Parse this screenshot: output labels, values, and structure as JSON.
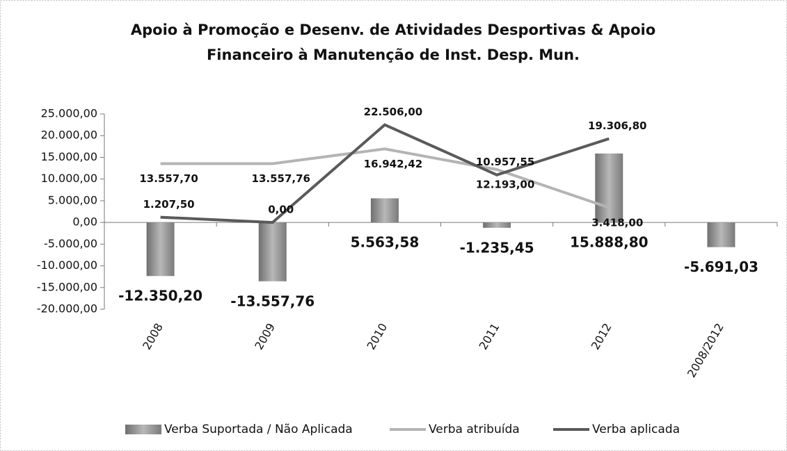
{
  "chart_data": {
    "type": "bar_line",
    "title": "Apoio à Promoção e Desenv. de Atividades Desportivas & Apoio Financeiro à Manutenção de Inst. Desp. Mun.",
    "categories": [
      "2008",
      "2009",
      "2010",
      "2011",
      "2012",
      "2008/2012"
    ],
    "series": [
      {
        "name": "Verba Suportada / Não Aplicada",
        "type": "bar",
        "color": "#8e8e8e",
        "values": [
          -12350.2,
          -13557.76,
          5563.58,
          -1235.45,
          15888.8,
          -5691.03
        ],
        "value_labels": [
          "-12.350,20",
          "-13.557,76",
          "5.563,58",
          "-1.235,45",
          "15.888,80",
          "-5.691,03"
        ]
      },
      {
        "name": "Verba atribuída",
        "type": "line",
        "color": "#b4b4b4",
        "values": [
          13557.7,
          13557.76,
          16942.42,
          12193.0,
          3418.0,
          null
        ],
        "value_labels": [
          "13.557,70",
          "13.557,76",
          "16.942,42",
          "12.193,00",
          "3.418,00",
          null
        ]
      },
      {
        "name": "Verba aplicada",
        "type": "line",
        "color": "#5a5a5a",
        "values": [
          1207.5,
          0.0,
          22506.0,
          10957.55,
          19306.8,
          null
        ],
        "value_labels": [
          "1.207,50",
          "0,00",
          "22.506,00",
          "10.957,55",
          "19.306,80",
          null
        ]
      }
    ],
    "ylim": [
      -20000,
      25000
    ],
    "yticks": [
      {
        "value": -20000,
        "label": "-20.000,00"
      },
      {
        "value": -15000,
        "label": "-15.000,00"
      },
      {
        "value": -10000,
        "label": "-10.000,00"
      },
      {
        "value": -5000,
        "label": "-5.000,00"
      },
      {
        "value": 0,
        "label": "0,00"
      },
      {
        "value": 5000,
        "label": "5.000,00"
      },
      {
        "value": 10000,
        "label": "10.000,00"
      },
      {
        "value": 15000,
        "label": "15.000,00"
      },
      {
        "value": 20000,
        "label": "20.000,00"
      },
      {
        "value": 25000,
        "label": "25.000,00"
      }
    ],
    "grid": false,
    "legend": "bottom"
  }
}
